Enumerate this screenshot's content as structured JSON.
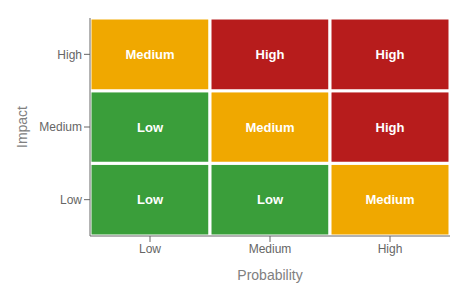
{
  "chart_data": {
    "type": "heatmap",
    "xlabel": "Probability",
    "ylabel": "Impact",
    "categories": [
      "Low",
      "Medium",
      "High"
    ],
    "y_categories": [
      "Low",
      "Medium",
      "High"
    ],
    "cells": [
      [
        "Low",
        "Low",
        "Medium"
      ],
      [
        "Low",
        "Medium",
        "High"
      ],
      [
        "Medium",
        "High",
        "High"
      ]
    ],
    "colors": [
      [
        "#3a9e3a",
        "#3a9e3a",
        "#f0a800"
      ],
      [
        "#3a9e3a",
        "#f0a800",
        "#b71c1c"
      ],
      [
        "#f0a800",
        "#b71c1c",
        "#b71c1c"
      ]
    ],
    "grid": false
  }
}
